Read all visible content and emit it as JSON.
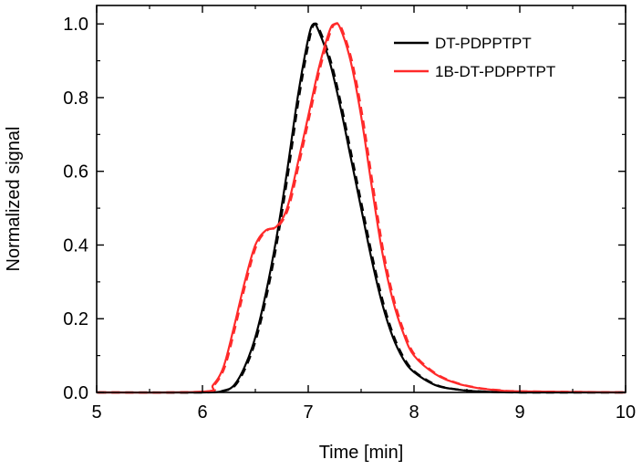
{
  "chart_data": {
    "type": "line",
    "xlabel": "Time [min]",
    "ylabel": "Normalized signal",
    "xlim": [
      5,
      10
    ],
    "ylim": [
      0,
      1.05
    ],
    "x_ticks": [
      5,
      6,
      7,
      8,
      9,
      10
    ],
    "x_tick_labels": [
      "5",
      "6",
      "7",
      "8",
      "9",
      "10"
    ],
    "y_ticks": [
      0,
      0.2,
      0.4,
      0.6,
      0.8,
      1.0
    ],
    "y_tick_labels": [
      "0.0",
      "0.2",
      "0.4",
      "0.6",
      "0.8",
      "1.0"
    ],
    "legend_position": "top-right",
    "grid": false,
    "series": [
      {
        "name": "DT-PDPPTPT",
        "color": "#000000",
        "x": [
          5.0,
          6.0,
          6.2,
          6.3,
          6.4,
          6.5,
          6.6,
          6.7,
          6.8,
          6.9,
          7.0,
          7.05,
          7.1,
          7.2,
          7.3,
          7.4,
          7.5,
          7.6,
          7.7,
          7.8,
          7.9,
          8.0,
          8.2,
          8.4,
          8.6,
          9.0,
          10.0
        ],
        "y": [
          0.0,
          0.0,
          0.005,
          0.02,
          0.07,
          0.15,
          0.27,
          0.42,
          0.6,
          0.8,
          0.96,
          1.0,
          0.98,
          0.9,
          0.78,
          0.64,
          0.5,
          0.36,
          0.24,
          0.15,
          0.09,
          0.055,
          0.02,
          0.008,
          0.003,
          0.0,
          0.0
        ]
      },
      {
        "name": "1B-DT-PDPPTPT",
        "color": "#ff2a2a",
        "x": [
          5.0,
          6.0,
          6.1,
          6.2,
          6.3,
          6.4,
          6.5,
          6.6,
          6.7,
          6.8,
          6.9,
          7.0,
          7.1,
          7.2,
          7.25,
          7.3,
          7.4,
          7.5,
          7.6,
          7.7,
          7.8,
          7.9,
          8.0,
          8.2,
          8.4,
          8.6,
          8.8,
          9.0,
          10.0
        ],
        "y": [
          0.0,
          0.002,
          0.02,
          0.07,
          0.18,
          0.3,
          0.4,
          0.44,
          0.45,
          0.5,
          0.62,
          0.75,
          0.88,
          0.98,
          1.0,
          0.99,
          0.9,
          0.75,
          0.56,
          0.38,
          0.25,
          0.16,
          0.1,
          0.05,
          0.025,
          0.012,
          0.006,
          0.003,
          0.0
        ]
      }
    ]
  }
}
